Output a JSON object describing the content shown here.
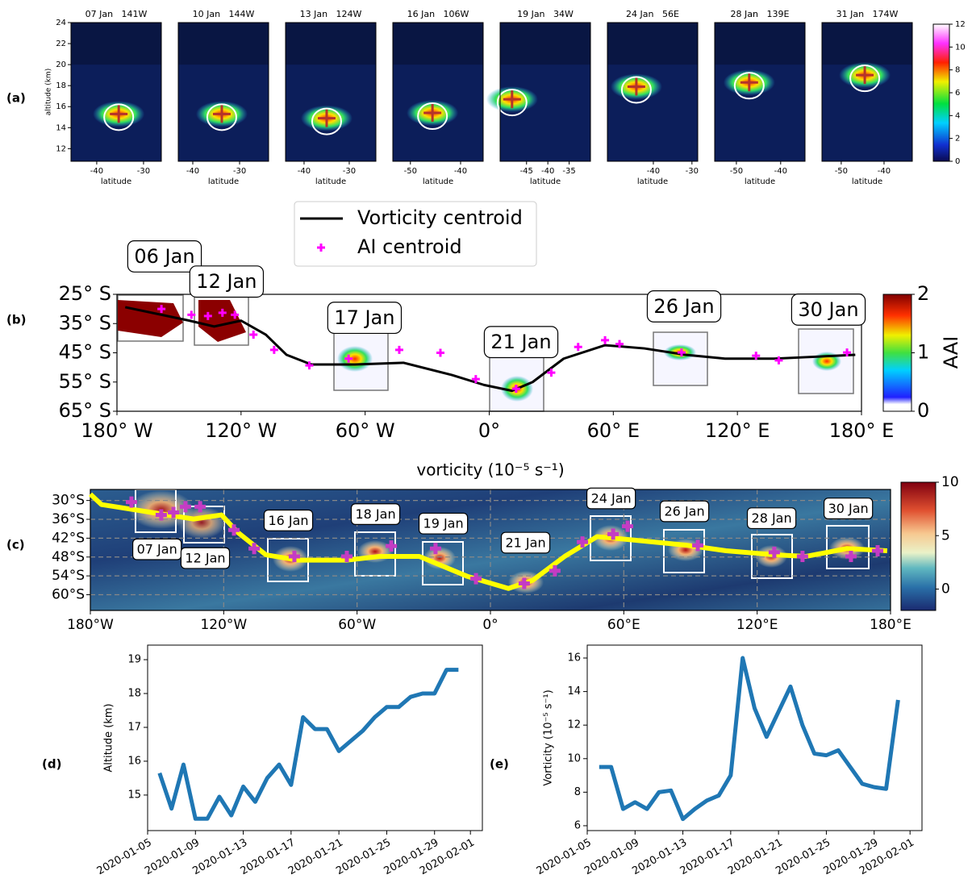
{
  "chart_data": [
    {
      "type": "panel_grid",
      "label": "(a)",
      "ylabel": "altitude (km)",
      "xlabel": "latitude",
      "ylim": [
        10.8,
        24
      ],
      "yticks": [
        12,
        14,
        16,
        18,
        20,
        22,
        24
      ],
      "cross_color": "#b5332a",
      "panels": [
        {
          "title": "07 Jan   141W",
          "xlim": [
            -45.5,
            -26.2
          ],
          "xticks": [
            -40,
            -30
          ],
          "cross": [
            -35.3,
            15.3
          ]
        },
        {
          "title": "10 Jan   144W",
          "xlim": [
            -43.1,
            -23.8
          ],
          "xticks": [
            -40,
            -30
          ],
          "cross": [
            -33.8,
            15.3
          ]
        },
        {
          "title": "13 Jan   124W",
          "xlim": [
            -44.1,
            -24.1
          ],
          "xticks": [
            -40,
            -30
          ],
          "cross": [
            -35,
            14.9
          ]
        },
        {
          "title": "16 Jan   106W",
          "xlim": [
            -53.5,
            -35.5
          ],
          "xticks": [
            -50,
            -40
          ],
          "cross": [
            -45.6,
            15.4
          ]
        },
        {
          "title": "19 Jan   34W",
          "xlim": [
            -51.2,
            -30
          ],
          "xticks": [
            -45,
            -40,
            -35
          ],
          "cross": [
            -48.4,
            16.7
          ]
        },
        {
          "title": "24 Jan   56E",
          "xlim": [
            -51.9,
            -28.5
          ],
          "xticks": [
            -40,
            -30
          ],
          "cross": [
            -44.4,
            17.9
          ]
        },
        {
          "title": "28 Jan   139E",
          "xlim": [
            -54.9,
            -34.5
          ],
          "xticks": [
            -50,
            -40
          ],
          "cross": [
            -47.1,
            18.3
          ]
        },
        {
          "title": "31 Jan   174W",
          "xlim": [
            -54.5,
            -33.4
          ],
          "xticks": [
            -50,
            -40
          ],
          "cross": [
            -44.5,
            19.0
          ]
        }
      ],
      "colorbar": {
        "lim": [
          0,
          12
        ],
        "ticks": [
          0,
          2,
          4,
          6,
          8,
          10,
          12
        ]
      }
    },
    {
      "type": "map",
      "label": "(b)",
      "xlim": [
        -180,
        180
      ],
      "ylim": [
        -65,
        -25
      ],
      "xticks": [
        {
          "value": -180,
          "label": "180° W"
        },
        {
          "value": -120,
          "label": "120° W"
        },
        {
          "value": -60,
          "label": "60° W"
        },
        {
          "value": 0,
          "label": "0°"
        },
        {
          "value": 60,
          "label": "60° E"
        },
        {
          "value": 120,
          "label": "120° E"
        },
        {
          "value": 180,
          "label": "180° E"
        }
      ],
      "yticks": [
        {
          "value": -25,
          "label": "25° S"
        },
        {
          "value": -35,
          "label": "35° S"
        },
        {
          "value": -45,
          "label": "45° S"
        },
        {
          "value": -55,
          "label": "55° S"
        },
        {
          "value": -65,
          "label": "65° S"
        }
      ],
      "series": [
        {
          "name": "Vorticity centroid",
          "color": "#000000",
          "marker": "line",
          "x": [
            -176,
            -145,
            -133,
            -120,
            -108,
            -98,
            -86,
            -65,
            -41.5,
            -18,
            -2.5,
            11,
            21,
            36,
            56,
            75,
            95,
            114,
            138,
            153,
            177
          ],
          "values": [
            -29.4,
            -34,
            -36,
            -34,
            -38.8,
            -45.7,
            -49,
            -49,
            -48.4,
            -52.6,
            -56,
            -58,
            -55,
            -47,
            -42.4,
            -43.5,
            -45.7,
            -47,
            -47,
            -46.5,
            -45.7
          ]
        },
        {
          "name": "AI centroid",
          "color": "#ff00ff",
          "marker": "plus",
          "x": [
            -158.5,
            -144,
            -136,
            -129,
            -123,
            -114,
            -104,
            -87,
            -68,
            -43.5,
            -23.6,
            -6.5,
            13,
            30,
            43,
            56,
            63,
            93,
            129,
            140,
            173
          ],
          "values": [
            -30,
            -32,
            -32.4,
            -31.3,
            -32,
            -38.8,
            -44,
            -49.3,
            -47,
            -44,
            -45,
            -54,
            -57.3,
            -51.8,
            -43,
            -40.7,
            -42,
            -44.9,
            -46,
            -47.6,
            -44.9
          ]
        }
      ],
      "annotations": [
        {
          "text": "06 Jan",
          "x": -157,
          "y": -12.3
        },
        {
          "text": "12 Jan",
          "x": -127,
          "y": -20.9
        },
        {
          "text": "17 Jan",
          "x": -60.3,
          "y": -33.3
        },
        {
          "text": "21 Jan",
          "x": 15.4,
          "y": -41.6
        },
        {
          "text": "26 Jan",
          "x": 94.2,
          "y": -29.4
        },
        {
          "text": "30 Jan",
          "x": 164,
          "y": -30.5
        }
      ],
      "colorbar": {
        "label": "AAI",
        "lim": [
          0,
          2
        ],
        "ticks": [
          0,
          1,
          2
        ]
      }
    },
    {
      "type": "map",
      "label": "(c)",
      "title": "vorticity (10⁻⁵ s⁻¹)",
      "xlim": [
        -180,
        180
      ],
      "ylim": [
        -65,
        -26.5
      ],
      "grid": true,
      "xticks": [
        {
          "value": -180,
          "label": "180°W"
        },
        {
          "value": -120,
          "label": "120°W"
        },
        {
          "value": -60,
          "label": "60°W"
        },
        {
          "value": 0,
          "label": "0°"
        },
        {
          "value": 60,
          "label": "60°E"
        },
        {
          "value": 120,
          "label": "120°E"
        },
        {
          "value": 180,
          "label": "180°E"
        }
      ],
      "yticks": [
        {
          "value": -30,
          "label": "30°S"
        },
        {
          "value": -36,
          "label": "36°S"
        },
        {
          "value": -42,
          "label": "42°S"
        },
        {
          "value": -48,
          "label": "48°S"
        },
        {
          "value": -54,
          "label": "54°S"
        },
        {
          "value": -60,
          "label": "60°S"
        }
      ],
      "series": [
        {
          "color": "#ffff00",
          "marker": "line",
          "x": [
            -180,
            -175,
            -148,
            -133.5,
            -121,
            -113.6,
            -101,
            -86.4,
            -64.6,
            -50,
            -32,
            -10.2,
            8.1,
            19,
            33.4,
            48,
            66,
            87.8,
            106,
            128,
            142,
            160.4,
            178.5
          ],
          "values": [
            -28,
            -31.3,
            -34.3,
            -35.9,
            -34.6,
            -40.2,
            -47.3,
            -49,
            -49,
            -47.8,
            -47.8,
            -54.2,
            -58,
            -55.4,
            -47.8,
            -41.5,
            -42.7,
            -44.2,
            -46,
            -47.3,
            -47.8,
            -45.3,
            -46
          ]
        },
        {
          "color": "#c43cc4",
          "marker": "plus",
          "x": [
            -161.5,
            -148.1,
            -142.6,
            -137.2,
            -130.6,
            -115.4,
            -106.3,
            -88.2,
            -64.6,
            -44.6,
            -24.7,
            -6.5,
            15.2,
            29,
            41.4,
            55.2,
            61.7,
            93.3,
            127.7,
            140.4,
            162.2,
            174.2
          ],
          "values": [
            -30.5,
            -34.6,
            -33.8,
            -32,
            -32,
            -39.4,
            -45.3,
            -47.8,
            -47.8,
            -44.5,
            -45.3,
            -54.9,
            -56.4,
            -52.4,
            -43.2,
            -40.7,
            -38.2,
            -44.3,
            -46.5,
            -47.8,
            -47.8,
            -46
          ]
        }
      ],
      "annotations": [
        {
          "text": "07 Jan",
          "x": -150,
          "y": -45.8
        },
        {
          "text": "12 Jan",
          "x": -128.3,
          "y": -48.6
        },
        {
          "text": "16 Jan",
          "x": -90.9,
          "y": -36.6
        },
        {
          "text": "18 Jan",
          "x": -51.7,
          "y": -34.6
        },
        {
          "text": "19 Jan",
          "x": -21.2,
          "y": -37.6
        },
        {
          "text": "21 Jan",
          "x": 15.8,
          "y": -43.7
        },
        {
          "text": "24 Jan",
          "x": 54.3,
          "y": -29.6
        },
        {
          "text": "26 Jan",
          "x": 87.3,
          "y": -33.7
        },
        {
          "text": "28 Jan",
          "x": 126.5,
          "y": -35.9
        },
        {
          "text": "30 Jan",
          "x": 161,
          "y": -32.8
        }
      ],
      "colorbar": {
        "lim": [
          -2,
          10
        ],
        "ticks": [
          0,
          5,
          10
        ]
      }
    },
    {
      "type": "line",
      "label": "(d)",
      "ylabel": "Altitude (km)",
      "color": "#1f77b4",
      "x": [
        "2020-01-06",
        "2020-01-07",
        "2020-01-08",
        "2020-01-09",
        "2020-01-10",
        "2020-01-11",
        "2020-01-12",
        "2020-01-13",
        "2020-01-14",
        "2020-01-15",
        "2020-01-16",
        "2020-01-17",
        "2020-01-18",
        "2020-01-19",
        "2020-01-20",
        "2020-01-21",
        "2020-01-22",
        "2020-01-23",
        "2020-01-24",
        "2020-01-25",
        "2020-01-26",
        "2020-01-27",
        "2020-01-28",
        "2020-01-29",
        "2020-01-30",
        "2020-01-31"
      ],
      "values": [
        15.65,
        14.6,
        15.9,
        14.3,
        14.3,
        14.95,
        14.4,
        15.25,
        14.8,
        15.5,
        15.9,
        15.3,
        17.3,
        16.95,
        16.95,
        16.3,
        16.6,
        16.9,
        17.3,
        17.6,
        17.6,
        17.9,
        18.0,
        18.0,
        18.7,
        18.7
      ],
      "xlim": [
        "2020-01-05",
        "2020-02-02"
      ],
      "ylim": [
        13.95,
        19.43
      ],
      "xticks": [
        "2020-01-05",
        "2020-01-09",
        "2020-01-13",
        "2020-01-17",
        "2020-01-21",
        "2020-01-25",
        "2020-01-29",
        "2020-02-01"
      ],
      "yticks": [
        15,
        16,
        17,
        18,
        19
      ]
    },
    {
      "type": "line",
      "label": "(e)",
      "ylabel": "Vorticity (10⁻⁵ s⁻¹)",
      "color": "#1f77b4",
      "x": [
        "2020-01-06",
        "2020-01-07",
        "2020-01-08",
        "2020-01-09",
        "2020-01-10",
        "2020-01-11",
        "2020-01-12",
        "2020-01-13",
        "2020-01-14",
        "2020-01-15",
        "2020-01-16",
        "2020-01-17",
        "2020-01-18",
        "2020-01-19",
        "2020-01-20",
        "2020-01-21",
        "2020-01-22",
        "2020-01-23",
        "2020-01-24",
        "2020-01-25",
        "2020-01-26",
        "2020-01-27",
        "2020-01-28",
        "2020-01-29",
        "2020-01-30",
        "2020-01-31"
      ],
      "values": [
        9.5,
        9.5,
        7.0,
        7.4,
        7.0,
        8.0,
        8.1,
        6.4,
        7.0,
        7.5,
        7.8,
        9.0,
        16.0,
        13.0,
        11.3,
        12.8,
        14.3,
        12.0,
        10.3,
        10.2,
        10.5,
        9.5,
        8.5,
        8.3,
        8.2,
        13.5
      ],
      "xlim": [
        "2020-01-05",
        "2020-02-02"
      ],
      "ylim": [
        5.71,
        16.77
      ],
      "xticks": [
        "2020-01-05",
        "2020-01-09",
        "2020-01-13",
        "2020-01-17",
        "2020-01-21",
        "2020-01-25",
        "2020-01-29",
        "2020-02-01"
      ],
      "yticks": [
        6,
        8,
        10,
        12,
        14,
        16
      ]
    }
  ]
}
